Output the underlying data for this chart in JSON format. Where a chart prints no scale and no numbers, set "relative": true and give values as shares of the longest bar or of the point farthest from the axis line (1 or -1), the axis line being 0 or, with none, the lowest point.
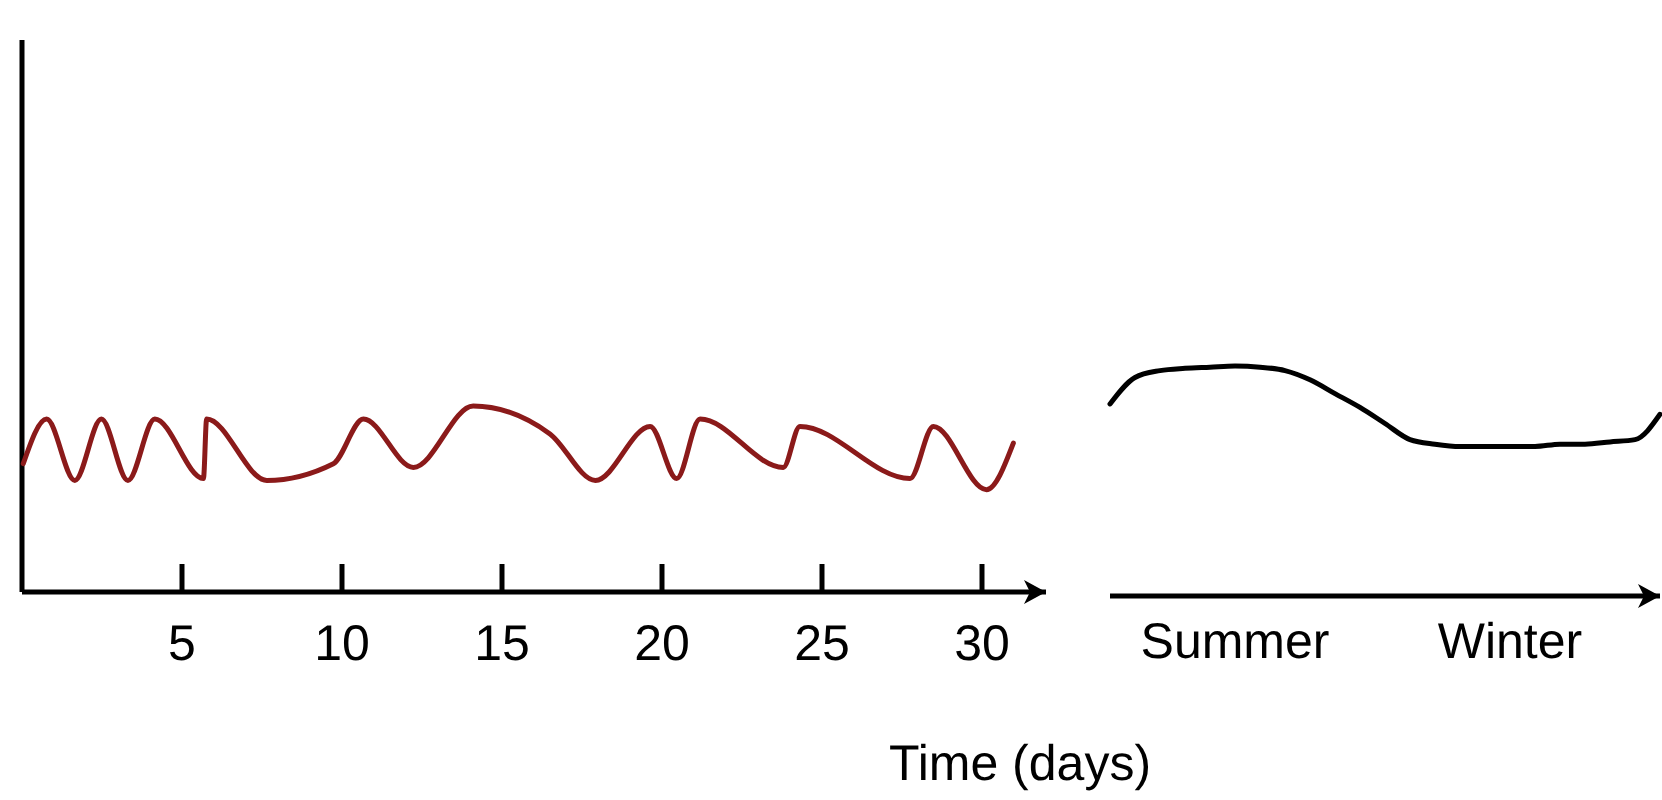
{
  "chart_data": [
    {
      "type": "line",
      "relative": true,
      "xlabel": "Time (days)",
      "xlim": [
        0,
        32
      ],
      "xticks": [
        5,
        10,
        15,
        20,
        25,
        30
      ],
      "series": [
        {
          "color": "#8b1a1a",
          "x": [
            0.04,
            0.77,
            1.65,
            2.48,
            3.31,
            4.15,
            5.67,
            5.77,
            7.65,
            9.73,
            10.67,
            12.23,
            14.1,
            16.5,
            17.92,
            19.63,
            20.46,
            21.19,
            23.79,
            24.31,
            27.75,
            28.48,
            30.14,
            30.98
          ],
          "values": [
            0.69,
            0.93,
            0.6,
            0.93,
            0.6,
            0.93,
            0.61,
            0.93,
            0.6,
            0.69,
            0.93,
            0.67,
            1,
            0.85,
            0.6,
            0.89,
            0.61,
            0.93,
            0.67,
            0.89,
            0.61,
            0.89,
            0.55,
            0.8
          ]
        }
      ]
    },
    {
      "type": "line",
      "relative": true,
      "categories": [
        null,
        null,
        null,
        null,
        null,
        "Summer",
        null,
        null,
        null,
        null,
        null,
        null,
        null,
        null,
        null,
        null,
        "Winter",
        null,
        null,
        null,
        null,
        null,
        null
      ],
      "series": [
        {
          "color": "#000000",
          "values": [
            0.835,
            0.95,
            0.98,
            0.99,
            0.995,
            1,
            0.995,
            0.98,
            0.94,
            0.88,
            0.82,
            0.75,
            0.68,
            0.66,
            0.65,
            0.65,
            0.65,
            0.65,
            0.66,
            0.66,
            0.67,
            0.68,
            0.79
          ]
        }
      ]
    }
  ]
}
